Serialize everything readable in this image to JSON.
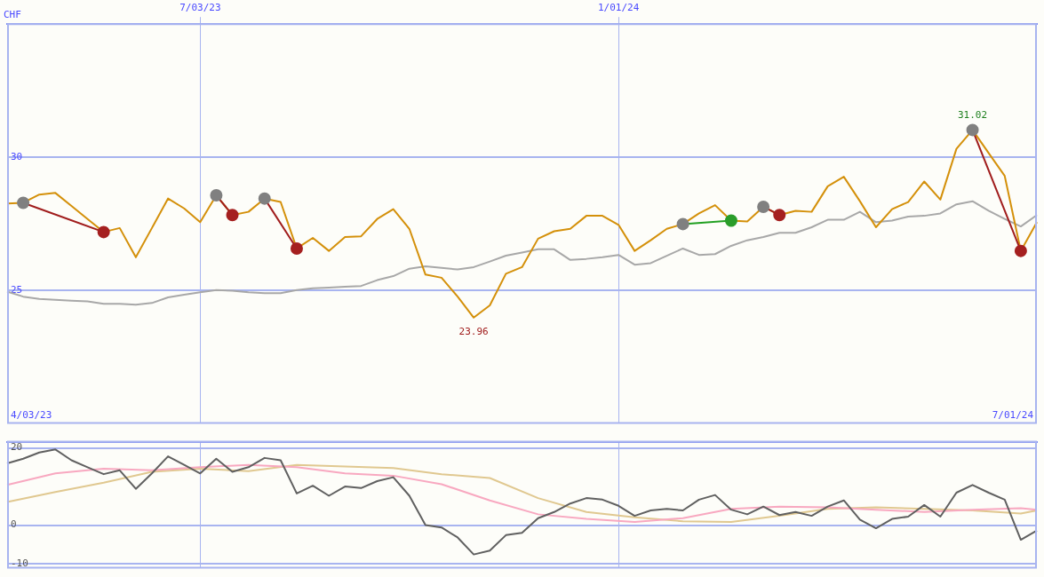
{
  "chart_data": [
    {
      "type": "line",
      "ylabel": "CHF",
      "legend": false,
      "grid": true,
      "marker": "none",
      "x": [
        "2023-04-10",
        "2023-04-17",
        "2023-04-24",
        "2023-05-01",
        "2023-05-08",
        "2023-05-15",
        "2023-05-22",
        "2023-05-29",
        "2023-06-05",
        "2023-06-12",
        "2023-06-19",
        "2023-06-26",
        "2023-07-03",
        "2023-07-10",
        "2023-07-17",
        "2023-07-24",
        "2023-07-31",
        "2023-08-07",
        "2023-08-14",
        "2023-08-21",
        "2023-08-28",
        "2023-09-04",
        "2023-09-11",
        "2023-09-18",
        "2023-09-25",
        "2023-10-02",
        "2023-10-09",
        "2023-10-16",
        "2023-10-23",
        "2023-10-30",
        "2023-11-06",
        "2023-11-13",
        "2023-11-20",
        "2023-11-27",
        "2023-12-04",
        "2023-12-11",
        "2023-12-18",
        "2023-12-25",
        "2024-01-01",
        "2024-01-08",
        "2024-01-15",
        "2024-01-22",
        "2024-01-29",
        "2024-02-05",
        "2024-02-12",
        "2024-02-19",
        "2024-02-26",
        "2024-03-04",
        "2024-03-11",
        "2024-03-18",
        "2024-03-25",
        "2024-04-01",
        "2024-04-08",
        "2024-04-15",
        "2024-04-22",
        "2024-04-29",
        "2024-05-06",
        "2024-05-13",
        "2024-05-20",
        "2024-05-27",
        "2024-06-03",
        "2024-06-10",
        "2024-06-17",
        "2024-06-24",
        "2024-07-01"
      ],
      "series": [
        {
          "color": "#a8a8a8",
          "values": [
            24.94,
            24.75,
            24.66,
            24.63,
            24.6,
            24.57,
            24.48,
            24.48,
            24.45,
            24.51,
            24.72,
            24.82,
            24.91,
            25.0,
            24.97,
            24.91,
            24.88,
            24.88,
            25.0,
            25.06,
            25.09,
            25.12,
            25.15,
            25.37,
            25.52,
            25.8,
            25.89,
            25.83,
            25.77,
            25.86,
            26.07,
            26.29,
            26.41,
            26.53,
            26.53,
            26.13,
            26.17,
            26.23,
            26.32,
            25.95,
            26.01,
            26.29,
            26.56,
            26.32,
            26.35,
            26.66,
            26.87,
            26.99,
            27.15,
            27.15,
            27.36,
            27.64,
            27.64,
            27.94,
            27.55,
            27.61,
            27.76,
            27.79,
            27.88,
            28.22,
            28.34,
            27.98,
            27.67,
            27.39,
            27.82
          ]
        },
        {
          "color": "#d4900a",
          "values": [
            28.25,
            28.28,
            28.59,
            28.65,
            28.16,
            27.67,
            27.18,
            27.33,
            26.23,
            27.33,
            28.44,
            28.07,
            27.55,
            28.56,
            27.82,
            27.94,
            28.44,
            28.31,
            26.56,
            26.96,
            26.47,
            26.99,
            27.02,
            27.67,
            28.04,
            27.3,
            25.58,
            25.46,
            24.75,
            23.96,
            24.42,
            25.61,
            25.86,
            26.93,
            27.21,
            27.3,
            27.79,
            27.79,
            27.45,
            26.47,
            26.87,
            27.3,
            27.48,
            27.88,
            28.19,
            27.61,
            27.58,
            28.13,
            27.82,
            27.98,
            27.94,
            28.9,
            29.26,
            28.34,
            27.36,
            28.04,
            28.31,
            29.08,
            28.4,
            30.31,
            31.02,
            30.15,
            29.29,
            26.47,
            27.55
          ]
        },
        {
          "color": "#a01c1c",
          "marker": "circle",
          "x": [
            "2023-04-17",
            "2023-05-22"
          ],
          "values": [
            28.28,
            27.18
          ],
          "colors": [
            "#808080",
            "#a52020"
          ]
        },
        {
          "color": "#a01c1c",
          "marker": "circle",
          "x": [
            "2023-07-10",
            "2023-07-17"
          ],
          "values": [
            28.56,
            27.82
          ],
          "colors": [
            "#808080",
            "#a52020"
          ]
        },
        {
          "color": "#a01c1c",
          "marker": "circle",
          "x": [
            "2023-07-31",
            "2023-08-14"
          ],
          "values": [
            28.44,
            26.56
          ],
          "colors": [
            "#808080",
            "#a52020"
          ]
        },
        {
          "color": "#22a022",
          "marker": "circle",
          "x": [
            "2024-01-29",
            "2024-02-19"
          ],
          "values": [
            27.48,
            27.61
          ],
          "colors": [
            "#808080",
            "#2a9d2a"
          ]
        },
        {
          "color": "#a01c1c",
          "marker": "circle",
          "x": [
            "2024-03-04",
            "2024-03-11"
          ],
          "values": [
            28.13,
            27.82
          ],
          "colors": [
            "#808080",
            "#a52020"
          ]
        },
        {
          "color": "#a01c1c",
          "marker": "circle",
          "x": [
            "2024-06-03",
            "2024-06-24"
          ],
          "values": [
            31.02,
            26.47
          ],
          "colors": [
            "#808080",
            "#a52020"
          ]
        }
      ],
      "xlim": [
        "2023-04-10",
        "2024-07-01"
      ],
      "xticks": [
        {
          "value": "2023-07-03",
          "label": "7/03/23"
        },
        {
          "value": "2024-01-01",
          "label": "1/01/24"
        }
      ],
      "ylim": [
        20,
        35
      ],
      "yticks": [
        25,
        30
      ],
      "annotations": [
        {
          "text": "31.02",
          "x": "2024-06-03",
          "y": 31.02
        },
        {
          "text": "23.96",
          "x": "2023-10-30",
          "y": 23.96
        },
        "4/03/23",
        "7/01/24"
      ]
    },
    {
      "type": "line",
      "legend": false,
      "grid": true,
      "marker": "none",
      "tick_labels": "y",
      "x": [
        "2023-04-10",
        "2023-04-17",
        "2023-04-24",
        "2023-05-01",
        "2023-05-08",
        "2023-05-15",
        "2023-05-22",
        "2023-05-29",
        "2023-06-05",
        "2023-06-12",
        "2023-06-19",
        "2023-06-26",
        "2023-07-03",
        "2023-07-10",
        "2023-07-17",
        "2023-07-24",
        "2023-07-31",
        "2023-08-07",
        "2023-08-14",
        "2023-08-21",
        "2023-08-28",
        "2023-09-04",
        "2023-09-11",
        "2023-09-18",
        "2023-09-25",
        "2023-10-02",
        "2023-10-09",
        "2023-10-16",
        "2023-10-23",
        "2023-10-30",
        "2023-11-06",
        "2023-11-13",
        "2023-11-20",
        "2023-11-27",
        "2023-12-04",
        "2023-12-11",
        "2023-12-18",
        "2023-12-25",
        "2024-01-01",
        "2024-01-08",
        "2024-01-15",
        "2024-01-22",
        "2024-01-29",
        "2024-02-05",
        "2024-02-12",
        "2024-02-19",
        "2024-02-26",
        "2024-03-04",
        "2024-03-11",
        "2024-03-18",
        "2024-03-25",
        "2024-04-01",
        "2024-04-08",
        "2024-04-15",
        "2024-04-22",
        "2024-04-29",
        "2024-05-06",
        "2024-05-13",
        "2024-05-20",
        "2024-05-27",
        "2024-06-03",
        "2024-06-10",
        "2024-06-17",
        "2024-06-24",
        "2024-07-01"
      ],
      "series": [
        {
          "color": "#e0c890",
          "x": [
            "2023-04-10",
            "2023-05-01",
            "2023-05-22",
            "2023-06-12",
            "2023-07-03",
            "2023-07-24",
            "2023-08-14",
            "2023-09-04",
            "2023-09-25",
            "2023-10-16",
            "2023-11-06",
            "2023-11-27",
            "2023-12-18",
            "2024-01-08",
            "2024-01-29",
            "2024-02-19",
            "2024-03-11",
            "2024-04-01",
            "2024-04-22",
            "2024-05-13",
            "2024-06-03",
            "2024-06-24",
            "2024-07-01"
          ],
          "values": [
            6.0,
            8.6,
            11.0,
            13.8,
            14.6,
            14.0,
            15.6,
            15.2,
            14.8,
            13.2,
            12.2,
            7.0,
            3.4,
            2.0,
            1.0,
            0.8,
            2.4,
            4.2,
            4.6,
            4.2,
            3.8,
            3.0,
            3.8
          ]
        },
        {
          "color": "#f8a8c0",
          "x": [
            "2023-04-10",
            "2023-05-01",
            "2023-05-22",
            "2023-06-12",
            "2023-07-03",
            "2023-07-24",
            "2023-08-14",
            "2023-09-04",
            "2023-09-25",
            "2023-10-16",
            "2023-11-06",
            "2023-11-27",
            "2023-12-18",
            "2024-01-08",
            "2024-01-29",
            "2024-02-19",
            "2024-03-11",
            "2024-04-01",
            "2024-04-22",
            "2024-05-13",
            "2024-06-03",
            "2024-06-24",
            "2024-07-01"
          ],
          "values": [
            10.4,
            13.4,
            14.6,
            14.2,
            15.0,
            15.6,
            15.0,
            13.4,
            12.8,
            10.6,
            6.4,
            2.8,
            1.6,
            0.8,
            1.8,
            4.2,
            4.8,
            4.6,
            4.0,
            3.4,
            4.0,
            4.4,
            4.0
          ]
        },
        {
          "color": "#606060",
          "values": [
            16.0,
            17.2,
            18.8,
            19.6,
            16.8,
            15.0,
            13.2,
            14.2,
            9.4,
            13.4,
            17.8,
            15.6,
            13.4,
            17.2,
            13.8,
            15.0,
            17.4,
            16.8,
            8.2,
            10.2,
            7.6,
            10.0,
            9.6,
            11.4,
            12.4,
            7.6,
            0,
            -0.6,
            -3.2,
            -7.6,
            -6.6,
            -2.6,
            -2.0,
            1.8,
            3.4,
            5.6,
            7.0,
            6.6,
            5.0,
            2.4,
            3.8,
            4.2,
            3.8,
            6.6,
            7.8,
            4.0,
            2.8,
            4.8,
            2.6,
            3.4,
            2.4,
            4.8,
            6.4,
            1.4,
            -0.8,
            1.6,
            2.2,
            5.2,
            2.2,
            8.4,
            10.4,
            8.4,
            6.6,
            -3.8,
            -1.4
          ]
        }
      ],
      "xlim": [
        "2023-04-10",
        "2024-07-01"
      ],
      "xticks": [
        "2023-07-03",
        "2024-01-01"
      ],
      "ylim": [
        -11,
        21.6
      ],
      "yticks": [
        20,
        0,
        -10
      ]
    }
  ]
}
